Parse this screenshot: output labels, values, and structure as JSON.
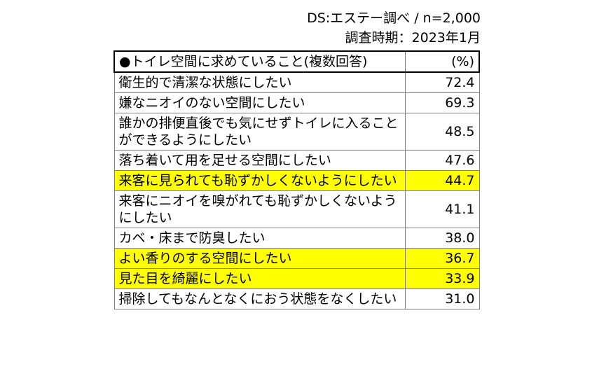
{
  "meta": {
    "source": "DS:エステー調べ / n=2,000",
    "period": "調査時期：2023年1月"
  },
  "chart_data": {
    "type": "table",
    "title": "●トイレ空間に求めていること(複数回答)",
    "unit": "(%)",
    "rows": [
      {
        "label": "衛生的で清潔な状態にしたい",
        "value": "72.4",
        "highlight": false
      },
      {
        "label": "嫌なニオイのない空間にしたい",
        "value": "69.3",
        "highlight": false
      },
      {
        "label": "誰かの排便直後でも気にせずトイレに入ることができるようにしたい",
        "value": "48.5",
        "highlight": false
      },
      {
        "label": "落ち着いて用を足せる空間にしたい",
        "value": "47.6",
        "highlight": false
      },
      {
        "label": "来客に見られても恥ずかしくないようにしたい",
        "value": "44.7",
        "highlight": true
      },
      {
        "label": "来客にニオイを嗅がれても恥ずかしくないようにしたい",
        "value": "41.1",
        "highlight": false
      },
      {
        "label": "カベ・床まで防臭したい",
        "value": "38.0",
        "highlight": false
      },
      {
        "label": "よい香りのする空間にしたい",
        "value": "36.7",
        "highlight": true
      },
      {
        "label": "見た目を綺麗にしたい",
        "value": "33.9",
        "highlight": true
      },
      {
        "label": "掃除してもなんとなくにおう状態をなくしたい",
        "value": "31.0",
        "highlight": false
      }
    ],
    "highlight_color": "#ffff00"
  }
}
